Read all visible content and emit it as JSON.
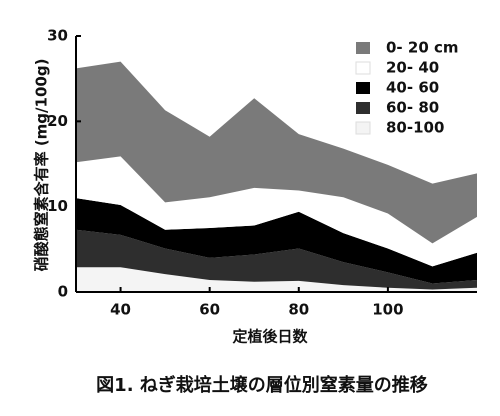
{
  "chart_data": {
    "type": "stacked_area",
    "ylabel": "硝酸態窒素含有率 (mg/100g)",
    "xlabel": "定植後日数",
    "caption": "図1. ねぎ栽培土壌の層位別窒素量の推移",
    "x": [
      30,
      40,
      50,
      60,
      70,
      80,
      90,
      100,
      110,
      120
    ],
    "series": [
      {
        "name": "0- 20 cm",
        "color": "#7a7a7a",
        "values": [
          11.0,
          11.1,
          10.8,
          7.1,
          10.5,
          6.6,
          5.7,
          5.7,
          7.0,
          5.1
        ]
      },
      {
        "name": "20- 40",
        "color": "#ffffff",
        "values": [
          4.2,
          5.7,
          3.2,
          3.6,
          4.4,
          2.5,
          4.2,
          4.1,
          2.7,
          4.2
        ]
      },
      {
        "name": "40- 60",
        "color": "#000000",
        "values": [
          3.7,
          3.5,
          2.2,
          3.5,
          3.4,
          4.3,
          3.4,
          2.8,
          2.0,
          3.2
        ]
      },
      {
        "name": "60- 80",
        "color": "#2e2e2e",
        "values": [
          4.4,
          3.8,
          3.0,
          2.6,
          3.2,
          3.8,
          2.7,
          1.8,
          0.7,
          0.9
        ]
      },
      {
        "name": "80-100",
        "color": "#f4f4f4",
        "values": [
          2.9,
          2.9,
          2.1,
          1.4,
          1.2,
          1.3,
          0.8,
          0.5,
          0.3,
          0.5
        ]
      }
    ],
    "xlim": [
      30,
      120
    ],
    "xticks": [
      40,
      60,
      80,
      100
    ],
    "ylim": [
      0,
      30
    ],
    "yticks": [
      0,
      10,
      20,
      30
    ]
  }
}
